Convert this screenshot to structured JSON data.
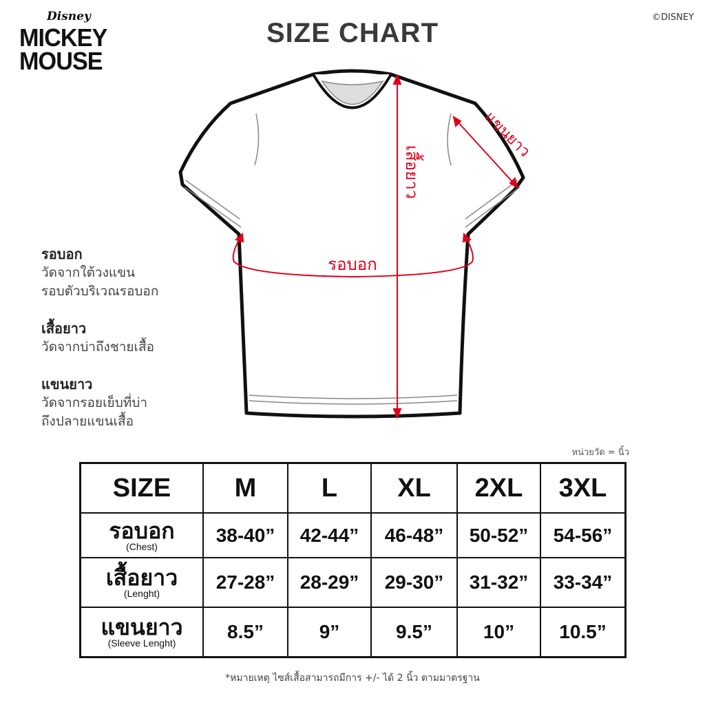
{
  "brand": {
    "disney": "Disney",
    "mickey": "MICKEY",
    "mouse": "MOUSE"
  },
  "copyright": "©DISNEY",
  "title": "SIZE CHART",
  "diagram_labels": {
    "chest": "รอบอก",
    "length": "เสื้อยาว",
    "sleeve": "แขนยาว"
  },
  "accent_color": "#e0001b",
  "descriptions": [
    {
      "title": "รอบอก",
      "lines": [
        "วัดจากใต้วงแขน",
        "รอบตัวบริเวณรอบอก"
      ]
    },
    {
      "title": "เสื้อยาว",
      "lines": [
        "วัดจากบ่าถึงชายเสื้อ"
      ]
    },
    {
      "title": "แขนยาว",
      "lines": [
        "วัดจากรอยเย็บที่บ่า",
        "ถึงปลายแขนเสื้อ"
      ]
    }
  ],
  "unit": "หน่วยวัด = นิ้ว",
  "table": {
    "header": [
      "SIZE",
      "M",
      "L",
      "XL",
      "2XL",
      "3XL"
    ],
    "rows": [
      {
        "th": "รอบอก",
        "en": "(Chest)",
        "values": [
          "38-40”",
          "42-44”",
          "46-48”",
          "50-52”",
          "54-56”"
        ]
      },
      {
        "th": "เสื้อยาว",
        "en": "(Lenght)",
        "values": [
          "27-28”",
          "28-29”",
          "29-30”",
          "31-32”",
          "33-34”"
        ]
      },
      {
        "th": "แขนยาว",
        "en": "(Sleeve Lenght)",
        "values": [
          "8.5”",
          "9”",
          "9.5”",
          "10”",
          "10.5”"
        ]
      }
    ]
  },
  "note": "*หมายเหตุ ไซส์เสื้อสามารถมีการ +/- ได้ 2 นิ้ว ตามมาตรฐาน"
}
